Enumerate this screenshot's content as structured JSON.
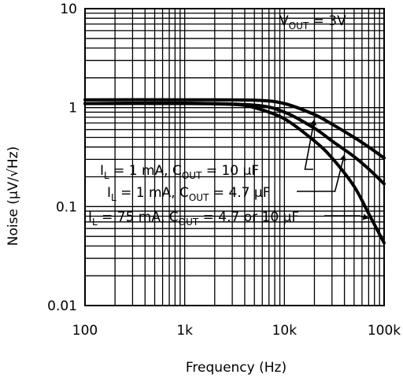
{
  "chart_data": {
    "type": "line",
    "title": "",
    "xlabel": "Frequency (Hz)",
    "ylabel": "Noise (µV/√Hz)",
    "xscale": "log",
    "yscale": "log",
    "xlim": [
      100,
      100000
    ],
    "ylim": [
      0.01,
      10
    ],
    "grid": true,
    "x_ticks": [
      {
        "value": 100,
        "label": "100"
      },
      {
        "value": 1000,
        "label": "1k"
      },
      {
        "value": 10000,
        "label": "10k"
      },
      {
        "value": 100000,
        "label": "100k"
      }
    ],
    "y_ticks": [
      {
        "value": 10,
        "label": "10"
      },
      {
        "value": 1,
        "label": "1"
      },
      {
        "value": 0.1,
        "label": "0.1"
      },
      {
        "value": 0.01,
        "label": "0.01"
      }
    ],
    "condition": {
      "main": "V",
      "sub": "OUT",
      "rest": " = 3V"
    },
    "series": [
      {
        "x": [
          100,
          1000,
          5000,
          10000,
          20000,
          30000,
          50000,
          70000,
          100000
        ],
        "y": [
          1.2,
          1.2,
          1.19,
          1.1,
          0.85,
          0.68,
          0.5,
          0.4,
          0.31
        ],
        "label_parts": [
          {
            "t": "I",
            "s": false
          },
          {
            "t": "L",
            "s": true
          },
          {
            "t": " = 1 mA, C",
            "s": false
          },
          {
            "t": "OUT",
            "s": true
          },
          {
            "t": " = 10 µF",
            "s": false
          }
        ]
      },
      {
        "x": [
          100,
          1000,
          5000,
          10000,
          20000,
          30000,
          50000,
          70000,
          100000
        ],
        "y": [
          1.1,
          1.11,
          1.06,
          0.9,
          0.62,
          0.46,
          0.32,
          0.24,
          0.17
        ],
        "label_parts": [
          {
            "t": "I",
            "s": false
          },
          {
            "t": "L",
            "s": true
          },
          {
            "t": " = 1 mA, C",
            "s": false
          },
          {
            "t": "OUT",
            "s": true
          },
          {
            "t": " = 4.7 µF",
            "s": false
          }
        ]
      },
      {
        "x": [
          100,
          1000,
          3000,
          5000,
          10000,
          20000,
          30000,
          50000,
          70000,
          100000
        ],
        "y": [
          1.1,
          1.1,
          1.08,
          1.0,
          0.77,
          0.46,
          0.31,
          0.16,
          0.085,
          0.043
        ],
        "label_parts": [
          {
            "t": "I",
            "s": false
          },
          {
            "t": "L",
            "s": true
          },
          {
            "t": " = 75 mA, C",
            "s": false
          },
          {
            "t": "OUT",
            "s": true
          },
          {
            "t": " = 4.7 or 10 µF",
            "s": false
          }
        ]
      }
    ]
  }
}
